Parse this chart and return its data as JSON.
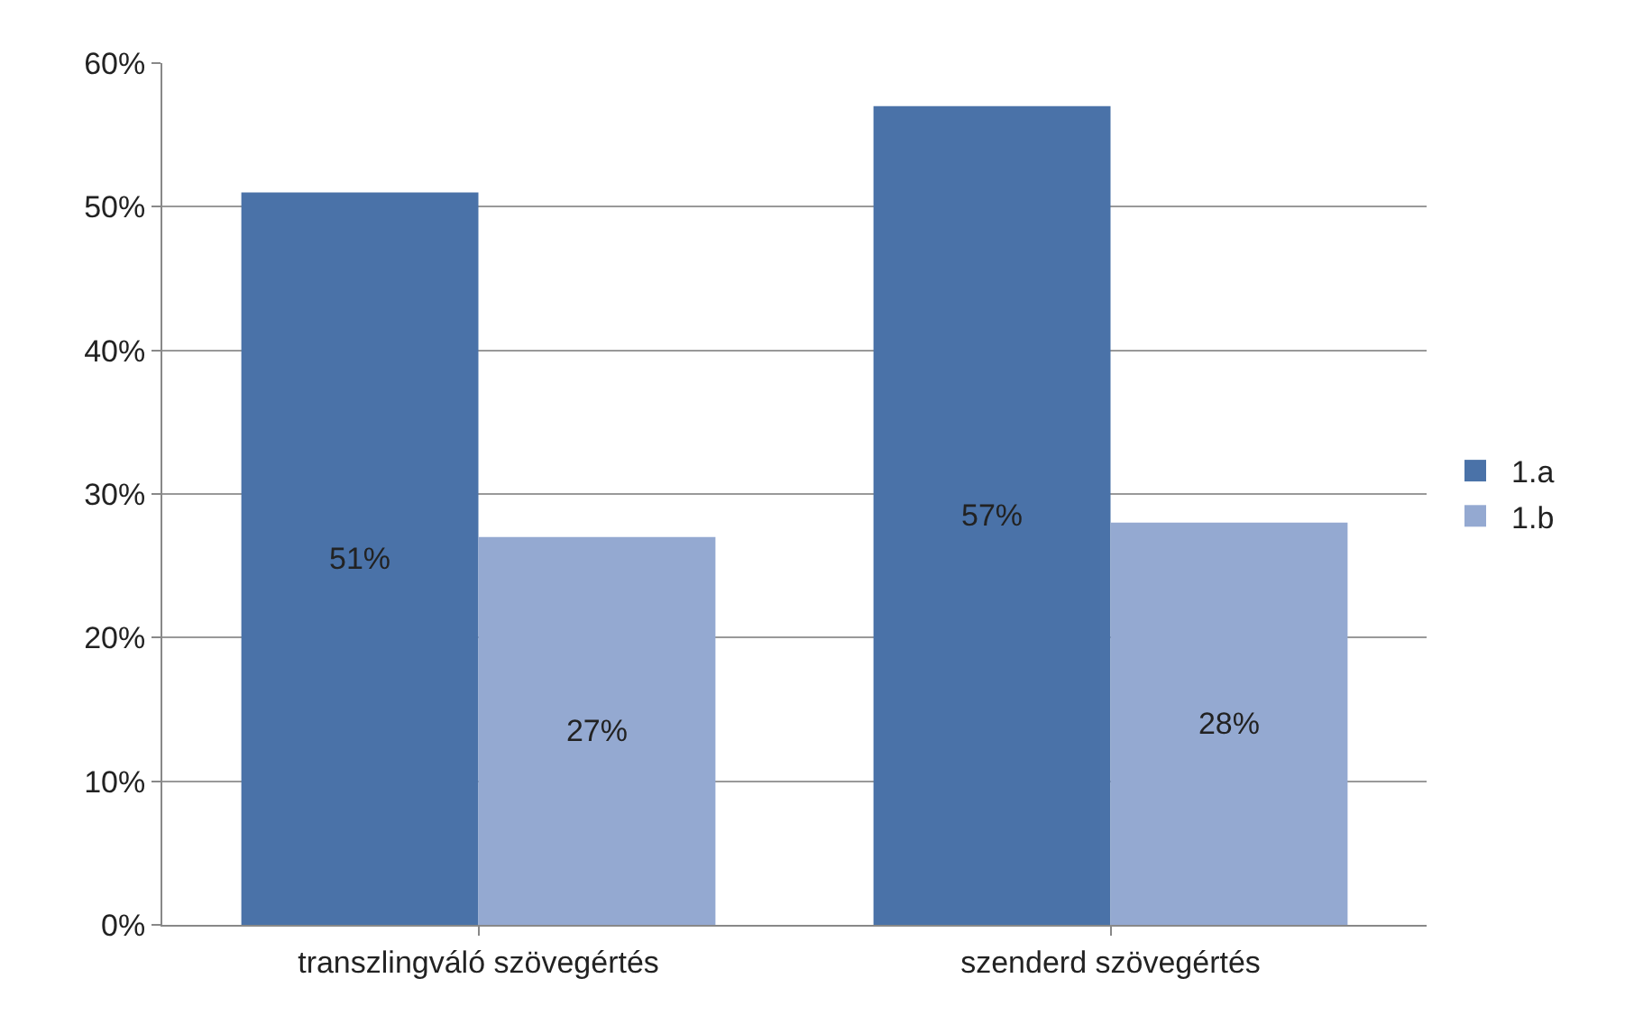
{
  "chart_data": {
    "type": "bar",
    "categories": [
      "transzlingváló szövegértés",
      "szenderd szövegértés"
    ],
    "series": [
      {
        "name": "1.a",
        "color": "#4a72a8",
        "values": [
          51,
          57
        ],
        "value_labels": [
          "51%",
          "57%"
        ]
      },
      {
        "name": "1.b",
        "color": "#94a9d1",
        "values": [
          27,
          28
        ],
        "value_labels": [
          "27%",
          "28%"
        ]
      }
    ],
    "ylim": [
      0,
      60
    ],
    "yticks": [
      {
        "value": 0,
        "label": "0%"
      },
      {
        "value": 10,
        "label": "10%"
      },
      {
        "value": 20,
        "label": "20%"
      },
      {
        "value": 30,
        "label": "30%"
      },
      {
        "value": 40,
        "label": "40%"
      },
      {
        "value": 50,
        "label": "50%"
      },
      {
        "value": 60,
        "label": "60%"
      }
    ],
    "grid": "y",
    "legend": "right"
  }
}
